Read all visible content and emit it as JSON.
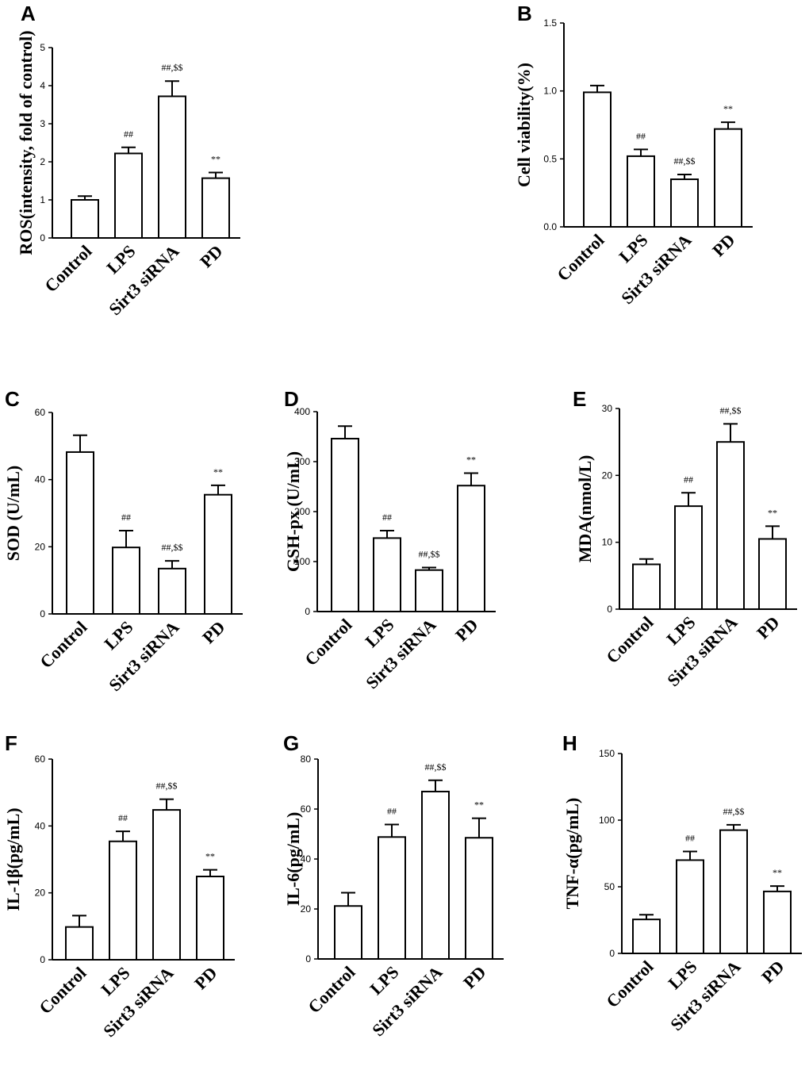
{
  "chart_data": [
    {
      "panel": "A",
      "type": "bar",
      "ylabel": "ROS(intensity, fold of control)",
      "categories": [
        "Control",
        "LPS",
        "Sirt3 siRNA",
        "PD"
      ],
      "values": [
        1.0,
        2.22,
        3.72,
        1.57
      ],
      "errors": [
        0.1,
        0.16,
        0.4,
        0.15
      ],
      "annotations": [
        "",
        "##",
        "##,$$",
        "**"
      ],
      "ylim": [
        0,
        5
      ],
      "yticks": [
        0,
        1,
        2,
        3,
        4,
        5
      ],
      "ytick_labels": [
        "0",
        "1",
        "2",
        "3",
        "4",
        "5"
      ]
    },
    {
      "panel": "B",
      "type": "bar",
      "ylabel": "Cell viability(%)",
      "categories": [
        "Control",
        "LPS",
        "Sirt3 siRNA",
        "PD"
      ],
      "values": [
        0.99,
        0.52,
        0.35,
        0.72
      ],
      "errors": [
        0.05,
        0.05,
        0.035,
        0.05
      ],
      "annotations": [
        "",
        "##",
        "##,$$",
        "**"
      ],
      "ylim": [
        0,
        1.5
      ],
      "yticks": [
        0,
        0.5,
        1.0,
        1.5
      ],
      "ytick_labels": [
        "0.0",
        "0.5",
        "1.0",
        "1.5"
      ]
    },
    {
      "panel": "C",
      "type": "bar",
      "ylabel": "SOD (U/mL)",
      "categories": [
        "Control",
        "LPS",
        "Sirt3 siRNA",
        "PD"
      ],
      "values": [
        48.2,
        19.8,
        13.5,
        35.5
      ],
      "errors": [
        5.0,
        5.0,
        2.3,
        2.8
      ],
      "annotations": [
        "",
        "##",
        "##,$$",
        "**"
      ],
      "ylim": [
        0,
        60
      ],
      "yticks": [
        0,
        20,
        40,
        60
      ],
      "ytick_labels": [
        "0",
        "20",
        "40",
        "60"
      ]
    },
    {
      "panel": "D",
      "type": "bar",
      "ylabel": "GSH-px (U/mL)",
      "categories": [
        "Control",
        "LPS",
        "Sirt3 siRNA",
        "PD"
      ],
      "values": [
        346,
        147,
        83,
        252
      ],
      "errors": [
        25,
        15,
        5,
        25
      ],
      "annotations": [
        "",
        "##",
        "##,$$",
        "**"
      ],
      "ylim": [
        0,
        400
      ],
      "yticks": [
        0,
        100,
        200,
        300,
        400
      ],
      "ytick_labels": [
        "0",
        "100",
        "200",
        "300",
        "400"
      ]
    },
    {
      "panel": "E",
      "type": "bar",
      "ylabel": "MDA(nmol/L)",
      "categories": [
        "Control",
        "LPS",
        "Sirt3 siRNA",
        "PD"
      ],
      "values": [
        6.7,
        15.4,
        25.0,
        10.5
      ],
      "errors": [
        0.8,
        2.0,
        2.7,
        1.9
      ],
      "annotations": [
        "",
        "##",
        "##,$$",
        "**"
      ],
      "ylim": [
        0,
        30
      ],
      "yticks": [
        0,
        10,
        20,
        30
      ],
      "ytick_labels": [
        "0",
        "10",
        "20",
        "30"
      ]
    },
    {
      "panel": "F",
      "type": "bar",
      "ylabel": "IL-1β(pg/mL)",
      "categories": [
        "Control",
        "LPS",
        "Sirt3 siRNA",
        "PD"
      ],
      "values": [
        9.8,
        35.4,
        44.8,
        24.9
      ],
      "errors": [
        3.4,
        3.0,
        3.2,
        2.0
      ],
      "annotations": [
        "",
        "##",
        "##,$$",
        "**"
      ],
      "ylim": [
        0,
        60
      ],
      "yticks": [
        0,
        20,
        40,
        60
      ],
      "ytick_labels": [
        "0",
        "20",
        "40",
        "60"
      ]
    },
    {
      "panel": "G",
      "type": "bar",
      "ylabel": "IL-6(pg/mL)",
      "categories": [
        "Control",
        "LPS",
        "Sirt3 siRNA",
        "PD"
      ],
      "values": [
        21.2,
        48.8,
        67.0,
        48.5
      ],
      "errors": [
        5.3,
        5.0,
        4.5,
        7.8
      ],
      "annotations": [
        "",
        "##",
        "##,$$",
        "**"
      ],
      "ylim": [
        0,
        80
      ],
      "yticks": [
        0,
        20,
        40,
        60,
        80
      ],
      "ytick_labels": [
        "0",
        "20",
        "40",
        "60",
        "80"
      ]
    },
    {
      "panel": "H",
      "type": "bar",
      "ylabel": "TNF-α(pg/mL)",
      "categories": [
        "Control",
        "LPS",
        "Sirt3 siRNA",
        "PD"
      ],
      "values": [
        25.5,
        70.0,
        92.5,
        46.5
      ],
      "errors": [
        3.5,
        6.5,
        4.0,
        4.0
      ],
      "annotations": [
        "",
        "##",
        "##,$$",
        "**"
      ],
      "ylim": [
        0,
        150
      ],
      "yticks": [
        0,
        50,
        100,
        150
      ],
      "ytick_labels": [
        "0",
        "50",
        "100",
        "150"
      ]
    }
  ]
}
